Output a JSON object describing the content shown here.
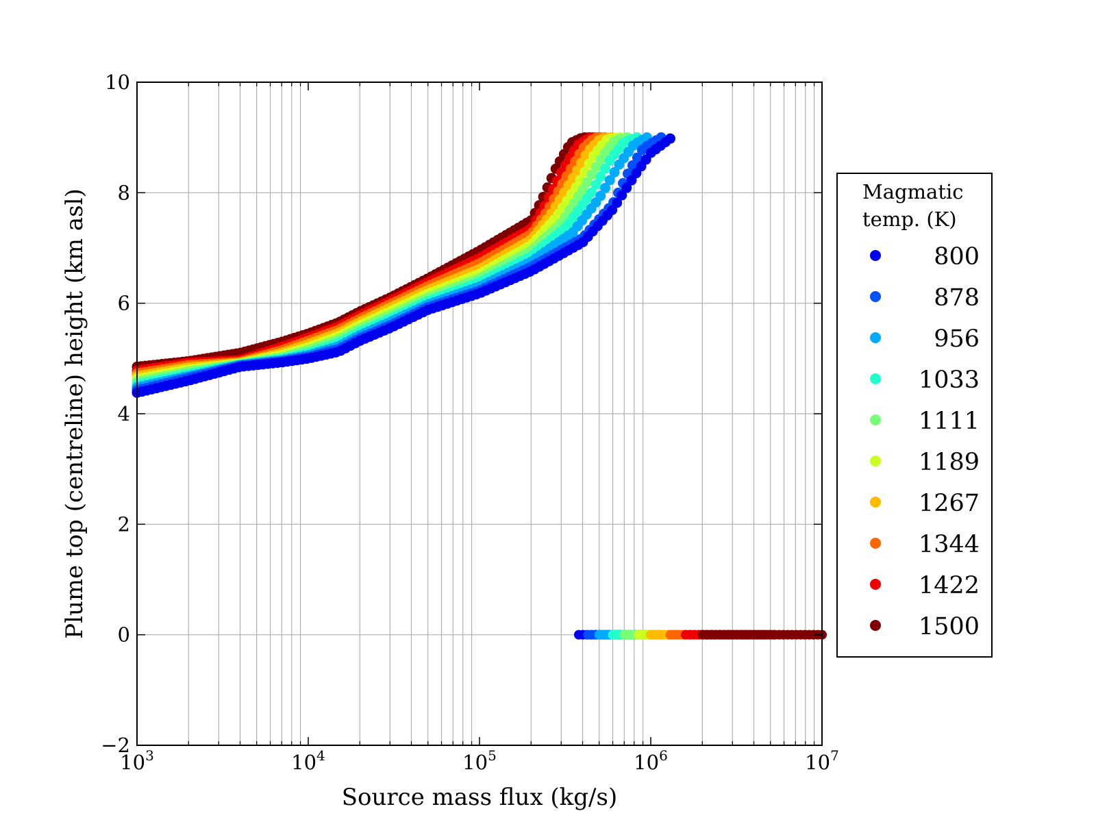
{
  "chart_data": {
    "type": "scatter",
    "title": "",
    "xlabel": "Source mass flux (kg/s)",
    "ylabel": "Plume top (centreline) height (km asl)",
    "xscale": "log",
    "xlim": [
      1000,
      10000000
    ],
    "ylim": [
      -2,
      10
    ],
    "x_ticks": [
      {
        "value": 1000,
        "base": "10",
        "exp": "3"
      },
      {
        "value": 10000,
        "base": "10",
        "exp": "4"
      },
      {
        "value": 100000,
        "base": "10",
        "exp": "5"
      },
      {
        "value": 1000000,
        "base": "10",
        "exp": "6"
      },
      {
        "value": 10000000,
        "base": "10",
        "exp": "7"
      }
    ],
    "y_ticks": [
      {
        "value": -2,
        "label": "−2"
      },
      {
        "value": 0,
        "label": "0"
      },
      {
        "value": 2,
        "label": "2"
      },
      {
        "value": 4,
        "label": "4"
      },
      {
        "value": 6,
        "label": "6"
      },
      {
        "value": 8,
        "label": "8"
      },
      {
        "value": 10,
        "label": "10"
      }
    ],
    "grid": true,
    "legend": {
      "title_lines": [
        "Magmatic",
        "temp. (K)"
      ],
      "placement": "outside-right"
    },
    "series": [
      {
        "name": "800",
        "color": "#0000ee",
        "curve": [
          [
            1000,
            4.38
          ],
          [
            2000,
            4.6
          ],
          [
            4000,
            4.85
          ],
          [
            7000,
            4.93
          ],
          [
            10000,
            5.0
          ],
          [
            15000,
            5.12
          ],
          [
            20000,
            5.32
          ],
          [
            30000,
            5.55
          ],
          [
            50000,
            5.88
          ],
          [
            100000,
            6.18
          ],
          [
            200000,
            6.58
          ],
          [
            400000,
            7.1
          ],
          [
            600000,
            7.7
          ],
          [
            800000,
            8.3
          ],
          [
            1000000,
            8.72
          ],
          [
            1300000,
            8.98
          ]
        ],
        "zero_range": [
          380000,
          700000
        ]
      },
      {
        "name": "878",
        "color": "#0050ff",
        "curve": [
          [
            1000,
            4.43
          ],
          [
            2000,
            4.65
          ],
          [
            4000,
            4.87
          ],
          [
            7000,
            4.95
          ],
          [
            10000,
            5.03
          ],
          [
            15000,
            5.17
          ],
          [
            20000,
            5.37
          ],
          [
            30000,
            5.6
          ],
          [
            50000,
            5.93
          ],
          [
            100000,
            6.23
          ],
          [
            200000,
            6.66
          ],
          [
            400000,
            7.18
          ],
          [
            600000,
            7.8
          ],
          [
            750000,
            8.4
          ],
          [
            900000,
            8.8
          ],
          [
            1150000,
            9.0
          ]
        ],
        "zero_range": [
          430000,
          900000
        ]
      },
      {
        "name": "956",
        "color": "#00aaff",
        "curve": [
          [
            1000,
            4.48
          ],
          [
            2000,
            4.68
          ],
          [
            4000,
            4.88
          ],
          [
            7000,
            4.97
          ],
          [
            10000,
            5.06
          ],
          [
            15000,
            5.22
          ],
          [
            20000,
            5.42
          ],
          [
            30000,
            5.66
          ],
          [
            50000,
            5.98
          ],
          [
            100000,
            6.3
          ],
          [
            200000,
            6.75
          ],
          [
            350000,
            7.28
          ],
          [
            500000,
            7.9
          ],
          [
            650000,
            8.5
          ],
          [
            800000,
            8.88
          ],
          [
            950000,
            9.0
          ]
        ],
        "zero_range": [
          500000,
          1100000
        ]
      },
      {
        "name": "1033",
        "color": "#22ffcc",
        "curve": [
          [
            1000,
            4.53
          ],
          [
            2000,
            4.72
          ],
          [
            4000,
            4.89
          ],
          [
            7000,
            4.99
          ],
          [
            10000,
            5.1
          ],
          [
            15000,
            5.28
          ],
          [
            20000,
            5.48
          ],
          [
            30000,
            5.72
          ],
          [
            50000,
            6.04
          ],
          [
            100000,
            6.38
          ],
          [
            200000,
            6.85
          ],
          [
            320000,
            7.38
          ],
          [
            450000,
            8.0
          ],
          [
            580000,
            8.6
          ],
          [
            700000,
            8.92
          ],
          [
            830000,
            9.0
          ]
        ],
        "zero_range": [
          600000,
          1400000
        ]
      },
      {
        "name": "1111",
        "color": "#77ff77",
        "curve": [
          [
            1000,
            4.58
          ],
          [
            2000,
            4.76
          ],
          [
            4000,
            4.9
          ],
          [
            7000,
            5.02
          ],
          [
            10000,
            5.15
          ],
          [
            15000,
            5.34
          ],
          [
            20000,
            5.54
          ],
          [
            30000,
            5.78
          ],
          [
            50000,
            6.1
          ],
          [
            100000,
            6.45
          ],
          [
            200000,
            6.95
          ],
          [
            300000,
            7.45
          ],
          [
            400000,
            8.05
          ],
          [
            520000,
            8.65
          ],
          [
            620000,
            8.95
          ],
          [
            730000,
            9.0
          ]
        ],
        "zero_range": [
          700000,
          1800000
        ]
      },
      {
        "name": "1189",
        "color": "#ccff22",
        "curve": [
          [
            1000,
            4.63
          ],
          [
            2000,
            4.8
          ],
          [
            4000,
            4.91
          ],
          [
            7000,
            5.06
          ],
          [
            10000,
            5.2
          ],
          [
            15000,
            5.4
          ],
          [
            20000,
            5.6
          ],
          [
            30000,
            5.85
          ],
          [
            50000,
            6.17
          ],
          [
            100000,
            6.53
          ],
          [
            200000,
            7.05
          ],
          [
            280000,
            7.55
          ],
          [
            370000,
            8.12
          ],
          [
            470000,
            8.7
          ],
          [
            560000,
            8.97
          ],
          [
            660000,
            9.0
          ]
        ],
        "zero_range": [
          850000,
          2300000
        ]
      },
      {
        "name": "1267",
        "color": "#ffbb00",
        "curve": [
          [
            1000,
            4.68
          ],
          [
            2000,
            4.84
          ],
          [
            4000,
            4.92
          ],
          [
            7000,
            5.1
          ],
          [
            10000,
            5.26
          ],
          [
            15000,
            5.46
          ],
          [
            20000,
            5.66
          ],
          [
            30000,
            5.92
          ],
          [
            50000,
            6.24
          ],
          [
            100000,
            6.62
          ],
          [
            200000,
            7.15
          ],
          [
            260000,
            7.6
          ],
          [
            340000,
            8.2
          ],
          [
            430000,
            8.75
          ],
          [
            510000,
            8.98
          ],
          [
            590000,
            9.0
          ]
        ],
        "zero_range": [
          1000000,
          3000000
        ]
      },
      {
        "name": "1344",
        "color": "#ff6600",
        "curve": [
          [
            1000,
            4.73
          ],
          [
            2000,
            4.88
          ],
          [
            4000,
            4.94
          ],
          [
            7000,
            5.15
          ],
          [
            10000,
            5.32
          ],
          [
            15000,
            5.52
          ],
          [
            20000,
            5.72
          ],
          [
            30000,
            5.98
          ],
          [
            50000,
            6.31
          ],
          [
            100000,
            6.72
          ],
          [
            200000,
            7.25
          ],
          [
            250000,
            7.68
          ],
          [
            320000,
            8.28
          ],
          [
            400000,
            8.8
          ],
          [
            470000,
            9.0
          ],
          [
            540000,
            9.0
          ]
        ],
        "zero_range": [
          1300000,
          4000000
        ]
      },
      {
        "name": "1422",
        "color": "#ee0000",
        "curve": [
          [
            1000,
            4.78
          ],
          [
            2000,
            4.92
          ],
          [
            4000,
            4.97
          ],
          [
            7000,
            5.21
          ],
          [
            10000,
            5.38
          ],
          [
            15000,
            5.58
          ],
          [
            20000,
            5.78
          ],
          [
            30000,
            6.04
          ],
          [
            50000,
            6.38
          ],
          [
            100000,
            6.82
          ],
          [
            200000,
            7.35
          ],
          [
            240000,
            7.76
          ],
          [
            300000,
            8.36
          ],
          [
            370000,
            8.85
          ],
          [
            440000,
            9.0
          ],
          [
            500000,
            9.0
          ]
        ],
        "zero_range": [
          1600000,
          5200000
        ]
      },
      {
        "name": "1500",
        "color": "#7f0000",
        "curve": [
          [
            1000,
            4.85
          ],
          [
            2000,
            4.95
          ],
          [
            4000,
            5.1
          ],
          [
            7000,
            5.3
          ],
          [
            10000,
            5.45
          ],
          [
            15000,
            5.65
          ],
          [
            20000,
            5.85
          ],
          [
            30000,
            6.1
          ],
          [
            50000,
            6.45
          ],
          [
            100000,
            6.95
          ],
          [
            200000,
            7.5
          ],
          [
            230000,
            7.85
          ],
          [
            280000,
            8.45
          ],
          [
            340000,
            8.9
          ],
          [
            400000,
            9.0
          ],
          [
            460000,
            9.0
          ]
        ],
        "zero_range": [
          2000000,
          10000000
        ]
      }
    ]
  }
}
